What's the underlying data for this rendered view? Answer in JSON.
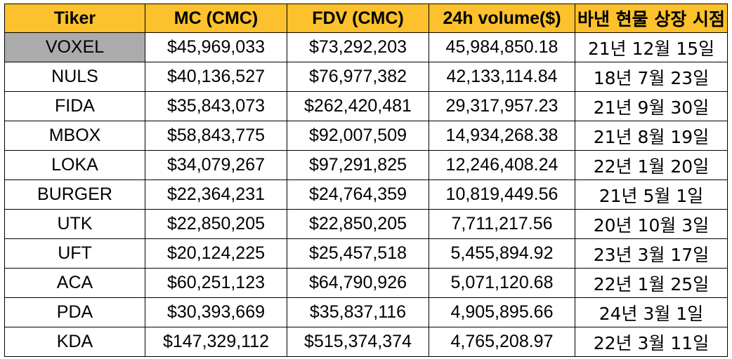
{
  "colors": {
    "header_background": "#fcc12c",
    "highlight_cell_background": "#ababab",
    "cell_background": "#ffffff",
    "grid_line": "#000000",
    "text": "#000000"
  },
  "table": {
    "headers": [
      "Tiker",
      "MC (CMC)",
      "FDV (CMC)",
      "24h volume($)",
      "바낸 현물 상장 시점"
    ],
    "highlighted_cell": "VOXEL",
    "rows": [
      [
        "VOXEL",
        "$45,969,033",
        "$73,292,203",
        "45,984,850.18",
        "21년 12월 15일"
      ],
      [
        "NULS",
        "$40,136,527",
        "$76,977,382",
        "42,133,114.84",
        "18년 7월 23일"
      ],
      [
        "FIDA",
        "$35,843,073",
        "$262,420,481",
        "29,317,957.23",
        "21년 9월 30일"
      ],
      [
        "MBOX",
        "$58,843,775",
        "$92,007,509",
        "14,934,268.38",
        "21년 8월 19일"
      ],
      [
        "LOKA",
        "$34,079,267",
        "$97,291,825",
        "12,246,408.24",
        "22년 1월 20일"
      ],
      [
        "BURGER",
        "$22,364,231",
        "$24,764,359",
        "10,819,449.56",
        "21년 5월 1일"
      ],
      [
        "UTK",
        "$22,850,205",
        "$22,850,205",
        "7,711,217.56",
        "20년 10월 3일"
      ],
      [
        "UFT",
        "$20,124,225",
        "$25,457,518",
        "5,455,894.92",
        "23년 3월 17일"
      ],
      [
        "ACA",
        "$60,251,123",
        "$64,790,926",
        "5,071,120.68",
        "22년 1월 25일"
      ],
      [
        "PDA",
        "$30,393,669",
        "$35,837,116",
        "4,905,895.66",
        "24년 3월 1일"
      ],
      [
        "KDA",
        "$147,329,112",
        "$515,374,374",
        "4,765,208.97",
        "22년 3월 11일"
      ]
    ]
  }
}
